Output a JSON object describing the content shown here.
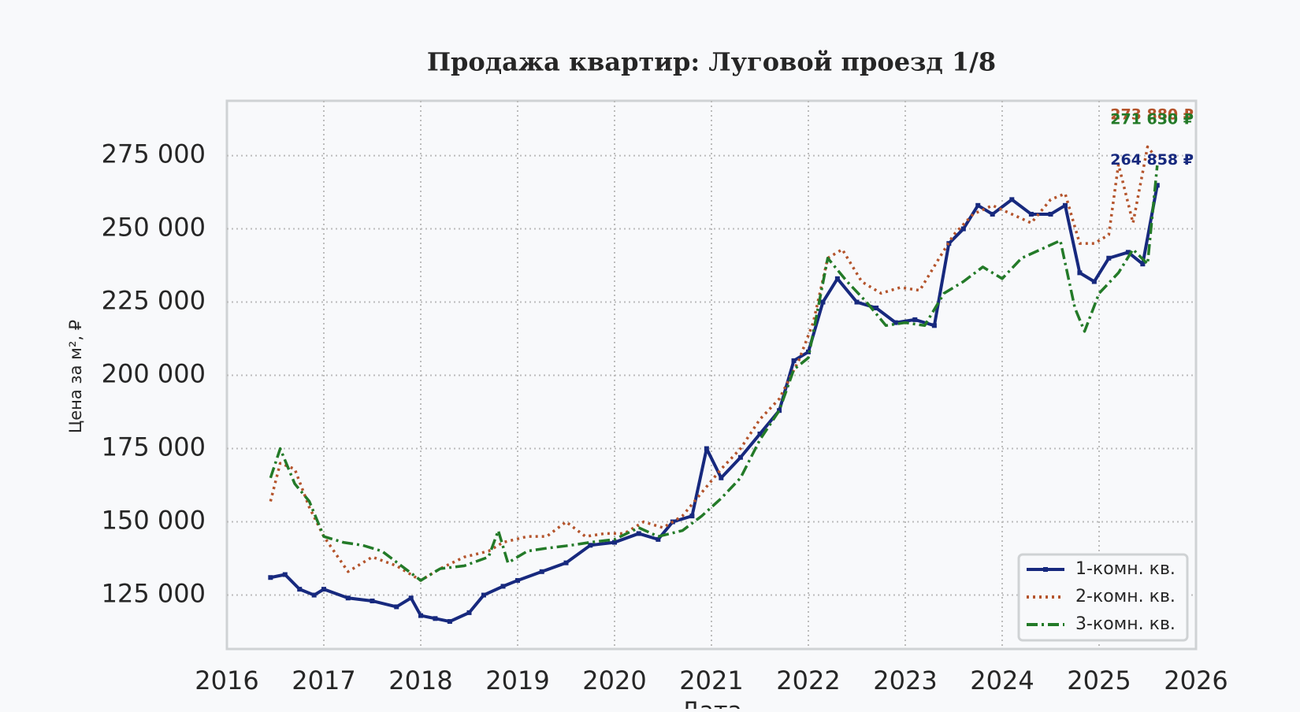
{
  "chart_data": {
    "type": "line",
    "title": "Продажа квартир: Луговой проезд 1/8",
    "x_label": "Дата",
    "y_label": "Цена за м², ₽",
    "xlim": [
      2016,
      2026
    ],
    "xticks": [
      2016,
      2017,
      2018,
      2019,
      2020,
      2021,
      2022,
      2023,
      2024,
      2025,
      2026
    ],
    "ylim": [
      106600,
      293700
    ],
    "yticks": [
      {
        "value": 125000,
        "label": "125 000"
      },
      {
        "value": 150000,
        "label": "150 000"
      },
      {
        "value": 175000,
        "label": "175 000"
      },
      {
        "value": 200000,
        "label": "200 000"
      },
      {
        "value": 225000,
        "label": "225 000"
      },
      {
        "value": 250000,
        "label": "250 000"
      },
      {
        "value": 275000,
        "label": "275 000"
      }
    ],
    "grid": true,
    "legend": "lower right",
    "series": [
      {
        "name": "1-комн. кв.",
        "color": "#17297e",
        "linestyle": "solid",
        "x": [
          2016.45,
          2016.6,
          2016.75,
          2016.9,
          2017.0,
          2017.25,
          2017.5,
          2017.75,
          2017.9,
          2018.0,
          2018.15,
          2018.3,
          2018.5,
          2018.65,
          2018.85,
          2019.0,
          2019.25,
          2019.5,
          2019.75,
          2020.0,
          2020.25,
          2020.45,
          2020.6,
          2020.8,
          2020.95,
          2021.1,
          2021.3,
          2021.5,
          2021.7,
          2021.85,
          2022.0,
          2022.15,
          2022.3,
          2022.5,
          2022.7,
          2022.9,
          2023.1,
          2023.3,
          2023.45,
          2023.6,
          2023.75,
          2023.9,
          2024.1,
          2024.3,
          2024.5,
          2024.65,
          2024.8,
          2024.95,
          2025.1,
          2025.3,
          2025.45,
          2025.6
        ],
        "values": [
          131000,
          132000,
          127000,
          125000,
          127000,
          124000,
          123000,
          121000,
          124000,
          118000,
          117000,
          116000,
          119000,
          125000,
          128000,
          130000,
          133000,
          136000,
          142000,
          143000,
          146000,
          144000,
          150000,
          152000,
          175000,
          165000,
          172000,
          180000,
          188000,
          205000,
          208000,
          225000,
          233000,
          225000,
          223000,
          218000,
          219000,
          217000,
          245000,
          250000,
          258000,
          255000,
          260000,
          255000,
          255000,
          258000,
          235000,
          232000,
          240000,
          242000,
          238000,
          264858
        ]
      },
      {
        "name": "2-комн. кв.",
        "color": "#b4542c",
        "linestyle": "dotted",
        "x": [
          2016.45,
          2016.55,
          2016.7,
          2016.85,
          2017.0,
          2017.25,
          2017.5,
          2017.75,
          2018.0,
          2018.2,
          2018.45,
          2018.7,
          2018.85,
          2019.1,
          2019.3,
          2019.5,
          2019.7,
          2019.9,
          2020.1,
          2020.3,
          2020.5,
          2020.7,
          2020.9,
          2021.1,
          2021.3,
          2021.5,
          2021.7,
          2021.9,
          2022.05,
          2022.2,
          2022.35,
          2022.55,
          2022.75,
          2022.95,
          2023.15,
          2023.35,
          2023.5,
          2023.7,
          2023.9,
          2024.1,
          2024.3,
          2024.5,
          2024.65,
          2024.8,
          2024.95,
          2025.1,
          2025.2,
          2025.35,
          2025.5,
          2025.6
        ],
        "values": [
          157000,
          170000,
          168000,
          155000,
          145000,
          133000,
          138000,
          135000,
          130000,
          134000,
          138000,
          140000,
          143000,
          145000,
          145000,
          150000,
          145000,
          146000,
          146000,
          150000,
          148000,
          152000,
          160000,
          168000,
          175000,
          185000,
          192000,
          205000,
          218000,
          240000,
          243000,
          232000,
          228000,
          230000,
          229000,
          240000,
          248000,
          255000,
          258000,
          255000,
          252000,
          260000,
          262000,
          245000,
          245000,
          248000,
          272000,
          252000,
          278000,
          273880
        ]
      },
      {
        "name": "3-комн. кв.",
        "color": "#237a28",
        "linestyle": "dashdot",
        "x": [
          2016.45,
          2016.55,
          2016.7,
          2016.85,
          2017.0,
          2017.2,
          2017.4,
          2017.6,
          2017.8,
          2018.0,
          2018.2,
          2018.45,
          2018.7,
          2018.8,
          2018.9,
          2019.1,
          2019.3,
          2019.55,
          2019.75,
          2020.0,
          2020.25,
          2020.45,
          2020.7,
          2020.9,
          2021.1,
          2021.3,
          2021.5,
          2021.7,
          2021.85,
          2022.0,
          2022.2,
          2022.4,
          2022.6,
          2022.8,
          2023.0,
          2023.2,
          2023.4,
          2023.6,
          2023.8,
          2024.0,
          2024.2,
          2024.4,
          2024.6,
          2024.75,
          2024.85,
          2025.0,
          2025.2,
          2025.35,
          2025.5,
          2025.6
        ],
        "values": [
          165000,
          175000,
          163000,
          157000,
          145000,
          143000,
          142000,
          140000,
          135000,
          130000,
          134000,
          135000,
          138000,
          147000,
          136000,
          140000,
          141000,
          142000,
          143000,
          144000,
          148000,
          145000,
          147000,
          152000,
          158000,
          165000,
          178000,
          188000,
          202000,
          206000,
          240000,
          232000,
          225000,
          217000,
          218000,
          217000,
          228000,
          232000,
          237000,
          233000,
          240000,
          243000,
          246000,
          223000,
          215000,
          228000,
          235000,
          243000,
          238000,
          271630
        ]
      }
    ],
    "annotations": [
      "264 858 ₽",
      "273 880 ₽",
      "271 630 ₽"
    ]
  }
}
